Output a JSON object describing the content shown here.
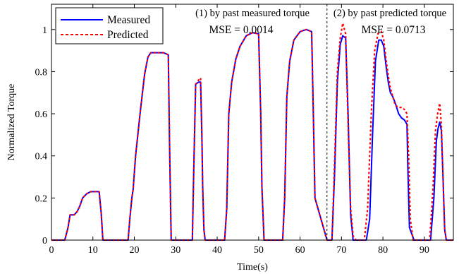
{
  "chart_data": {
    "type": "line",
    "xlabel": "Time(s)",
    "ylabel": "Normalized Torque",
    "xlim": [
      0,
      97
    ],
    "ylim": [
      0,
      1.12
    ],
    "xticks": [
      0,
      10,
      20,
      30,
      40,
      50,
      60,
      70,
      80,
      90
    ],
    "yticks": [
      0,
      0.2,
      0.4,
      0.6,
      0.8,
      1
    ],
    "ytick_labels": [
      "0",
      "0.2",
      "0.4",
      "0.6",
      "0.8",
      "1"
    ],
    "grid": false,
    "legend_position": "top-left",
    "divider_x": 66.5,
    "annotations": [
      {
        "lines": [
          "(1) by past measured torque",
          "MSE = 0.0014"
        ]
      },
      {
        "lines": [
          "(2) by past predicted torque",
          "MSE = 0.0713"
        ]
      }
    ],
    "series": [
      {
        "name": "Measured",
        "color": "#0000ff",
        "style": "solid",
        "x": [
          0,
          3.2,
          3.6,
          4.0,
          4.5,
          5.5,
          6.2,
          6.8,
          7.5,
          8.5,
          9.5,
          10.5,
          11.5,
          12.0,
          12.4,
          18.5,
          18.9,
          19.4,
          19.7,
          20.3,
          21.5,
          22.5,
          23.3,
          24.0,
          25.5,
          27.0,
          28.2,
          28.5,
          28.9,
          34.0,
          34.3,
          34.8,
          35.5,
          36.0,
          36.3,
          36.5,
          36.8,
          37.1,
          41.8,
          42.3,
          42.8,
          43.5,
          44.5,
          45.5,
          47.0,
          48.5,
          50.0,
          50.5,
          50.8,
          51.3,
          55.8,
          56.3,
          56.8,
          57.5,
          58.5,
          60.0,
          61.5,
          62.8,
          63.2,
          63.6,
          66.5,
          67.7,
          68.3,
          69.0,
          69.7,
          70.3,
          71.0,
          71.6,
          72.2,
          72.8,
          73.5,
          76.0,
          76.8,
          77.5,
          78.2,
          79.0,
          79.6,
          80.2,
          80.8,
          81.3,
          81.8,
          82.4,
          83.0,
          83.8,
          84.5,
          85.2,
          85.8,
          86.0,
          86.4,
          87.5,
          91.5,
          92.3,
          92.9,
          93.3,
          93.7,
          94.1,
          94.5,
          94.9,
          95.3,
          97
        ],
        "y": [
          0,
          0,
          0.03,
          0.06,
          0.12,
          0.12,
          0.135,
          0.16,
          0.2,
          0.22,
          0.23,
          0.23,
          0.23,
          0.13,
          0,
          0,
          0.1,
          0.2,
          0.24,
          0.4,
          0.62,
          0.79,
          0.87,
          0.89,
          0.89,
          0.89,
          0.88,
          0.45,
          0,
          0,
          0.3,
          0.74,
          0.75,
          0.75,
          0.5,
          0.25,
          0.05,
          0,
          0,
          0.15,
          0.6,
          0.75,
          0.86,
          0.92,
          0.97,
          0.985,
          0.98,
          0.6,
          0.25,
          0,
          0,
          0.2,
          0.68,
          0.85,
          0.95,
          0.99,
          1.0,
          0.99,
          0.6,
          0.2,
          0,
          0,
          0.3,
          0.75,
          0.93,
          0.97,
          0.96,
          0.6,
          0.12,
          0,
          0,
          0,
          0.1,
          0.5,
          0.85,
          0.95,
          0.95,
          0.92,
          0.82,
          0.75,
          0.7,
          0.68,
          0.65,
          0.6,
          0.58,
          0.57,
          0.55,
          0.35,
          0.06,
          0,
          0,
          0.2,
          0.47,
          0.53,
          0.56,
          0.52,
          0.3,
          0.05,
          0,
          0
        ]
      },
      {
        "name": "Predicted",
        "color": "#ff0000",
        "style": "dashed",
        "x": [
          0,
          3.2,
          3.6,
          4.0,
          4.5,
          5.5,
          6.2,
          6.8,
          7.5,
          8.5,
          9.5,
          10.5,
          11.5,
          12.0,
          12.4,
          18.5,
          18.9,
          19.4,
          19.7,
          20.3,
          21.5,
          22.5,
          23.3,
          24.0,
          25.5,
          27.0,
          28.2,
          28.5,
          28.9,
          34.0,
          34.3,
          34.8,
          35.5,
          36.0,
          36.3,
          36.5,
          36.8,
          37.1,
          41.8,
          42.3,
          42.8,
          43.5,
          44.5,
          45.5,
          47.0,
          48.5,
          50.0,
          50.5,
          50.8,
          51.3,
          55.8,
          56.3,
          56.8,
          57.5,
          58.5,
          60.0,
          61.5,
          62.8,
          63.2,
          63.6,
          66.5,
          67.7,
          68.3,
          69.0,
          69.7,
          70.3,
          71.0,
          71.6,
          72.2,
          72.8,
          73.5,
          75.5,
          76.3,
          77.2,
          78.0,
          78.8,
          79.6,
          80.2,
          80.8,
          81.3,
          81.8,
          82.4,
          83.0,
          83.8,
          84.5,
          85.2,
          85.8,
          86.2,
          86.6,
          87.3,
          91.3,
          92.1,
          92.7,
          93.2,
          93.7,
          94.1,
          94.5,
          94.9,
          95.3,
          97
        ],
        "y": [
          0,
          0,
          0.03,
          0.06,
          0.12,
          0.12,
          0.135,
          0.16,
          0.2,
          0.22,
          0.23,
          0.23,
          0.23,
          0.13,
          0,
          0,
          0.1,
          0.2,
          0.24,
          0.4,
          0.62,
          0.79,
          0.87,
          0.89,
          0.89,
          0.89,
          0.88,
          0.45,
          0,
          0,
          0.3,
          0.74,
          0.76,
          0.77,
          0.5,
          0.25,
          0.05,
          0,
          0,
          0.15,
          0.6,
          0.75,
          0.86,
          0.92,
          0.97,
          0.985,
          0.98,
          0.6,
          0.25,
          0,
          0,
          0.2,
          0.68,
          0.85,
          0.95,
          0.99,
          1.0,
          0.99,
          0.6,
          0.2,
          0,
          0,
          0.35,
          0.8,
          0.96,
          1.03,
          0.98,
          0.55,
          0.15,
          0.02,
          0,
          0,
          0.15,
          0.6,
          0.9,
          0.98,
          0.99,
          0.95,
          0.85,
          0.78,
          0.72,
          0.68,
          0.64,
          0.63,
          0.63,
          0.62,
          0.6,
          0.4,
          0.1,
          0,
          0,
          0.25,
          0.52,
          0.6,
          0.65,
          0.55,
          0.3,
          0.05,
          0,
          0
        ]
      }
    ]
  }
}
